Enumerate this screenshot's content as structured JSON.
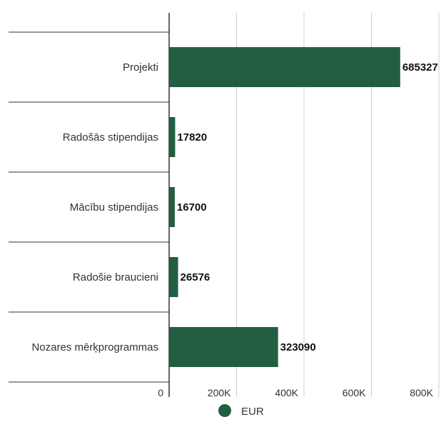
{
  "chart_data": {
    "type": "bar",
    "orientation": "horizontal",
    "title": "",
    "xlabel": "",
    "ylabel": "",
    "categories": [
      "Projekti",
      "Radošās stipendijas",
      "Mācību stipendijas",
      "Radošie braucieni",
      "Nozares mērķprogrammas"
    ],
    "series": [
      {
        "name": "EUR",
        "values": [
          685327,
          17820,
          16700,
          26576,
          323090
        ]
      }
    ],
    "xlim": [
      0,
      800000
    ],
    "x_ticks": [
      {
        "value": 0,
        "label": "0"
      },
      {
        "value": 200000,
        "label": "200K"
      },
      {
        "value": 400000,
        "label": "400K"
      },
      {
        "value": 600000,
        "label": "600K"
      },
      {
        "value": 800000,
        "label": "800K"
      }
    ],
    "data_labels": [
      "685327",
      "17820",
      "16700",
      "26576",
      "323090"
    ],
    "grid": true,
    "legend": {
      "placement": "bottom",
      "label": "EUR"
    },
    "colors": {
      "bar": "#225e42",
      "grid": "#cccccc",
      "axis": "#333333",
      "text": "#333333",
      "label": "#111111"
    }
  }
}
